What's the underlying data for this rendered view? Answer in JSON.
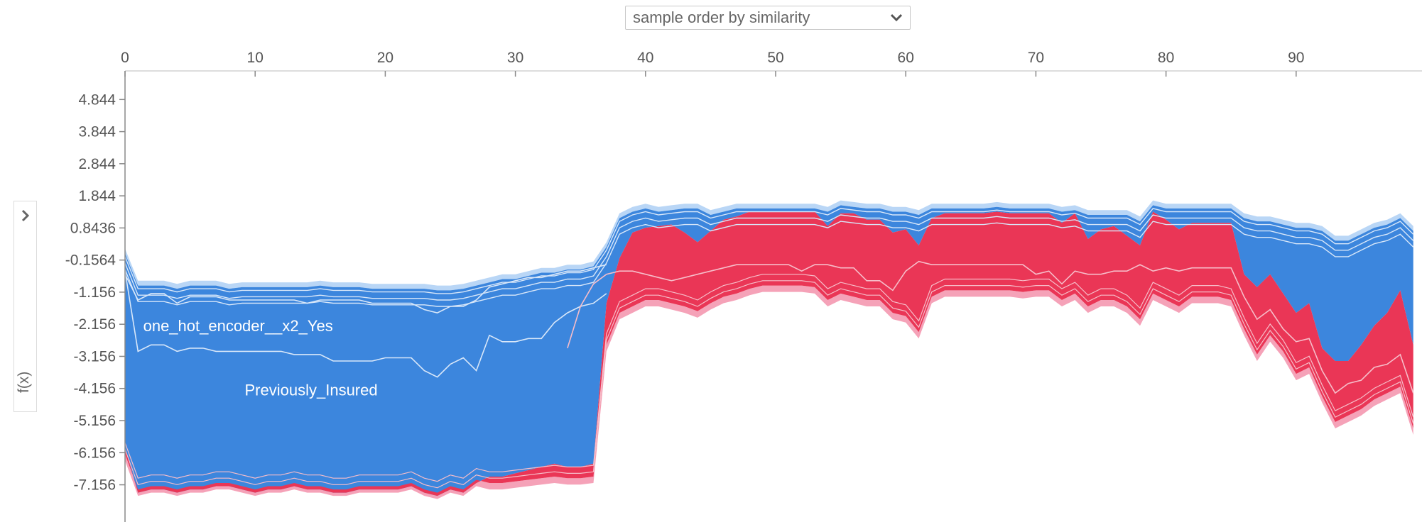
{
  "controls": {
    "order_select": "sample order by similarity",
    "side_axis_label": "f(x)"
  },
  "icons": {
    "dropdown": "chevron-down-icon",
    "expand": "chevron-right-icon"
  },
  "colors": {
    "negative": "#3c86dd",
    "positive": "#ea3656",
    "negative_light": "#b9d6f6",
    "positive_light": "#f5a2b8",
    "boundary": "#d8e7f9"
  },
  "chart_data": {
    "type": "area",
    "subtype": "stacked force plot (positive/negative contributions)",
    "x_ticks": [
      0,
      10,
      20,
      30,
      40,
      50,
      60,
      70,
      80,
      90
    ],
    "y_ticks": [
      "4.844",
      "3.844",
      "2.844",
      "1.844",
      "0.8436",
      "-0.1564",
      "-1.156",
      "-2.156",
      "-3.156",
      "-4.156",
      "-5.156",
      "-6.156",
      "-7.156"
    ],
    "xlim": [
      0,
      99
    ],
    "ylim": [
      -8.0,
      5.6
    ],
    "band_labels": [
      "one_hot_encoder__x2_Yes",
      "Previously_Insured"
    ],
    "x": [
      0,
      1,
      2,
      3,
      4,
      5,
      6,
      7,
      8,
      9,
      10,
      11,
      12,
      13,
      14,
      15,
      16,
      17,
      18,
      19,
      20,
      21,
      22,
      23,
      24,
      25,
      26,
      27,
      28,
      29,
      30,
      31,
      32,
      33,
      34,
      35,
      36,
      37,
      38,
      39,
      40,
      41,
      42,
      43,
      44,
      45,
      46,
      47,
      48,
      49,
      50,
      51,
      52,
      53,
      54,
      55,
      56,
      57,
      58,
      59,
      60,
      61,
      62,
      63,
      64,
      65,
      66,
      67,
      68,
      69,
      70,
      71,
      72,
      73,
      74,
      75,
      76,
      77,
      78,
      79,
      80,
      81,
      82,
      83,
      84,
      85,
      86,
      87,
      88,
      89,
      90,
      91,
      92,
      93,
      94,
      95,
      96,
      97,
      98,
      99
    ],
    "top": [
      0.2,
      -0.8,
      -0.8,
      -0.8,
      -0.9,
      -0.8,
      -0.8,
      -0.8,
      -0.9,
      -0.85,
      -0.85,
      -0.85,
      -0.85,
      -0.85,
      -0.85,
      -0.8,
      -0.85,
      -0.85,
      -0.85,
      -0.9,
      -0.9,
      -0.9,
      -0.9,
      -0.9,
      -0.95,
      -0.95,
      -0.9,
      -0.8,
      -0.7,
      -0.6,
      -0.6,
      -0.5,
      -0.4,
      -0.4,
      -0.3,
      -0.3,
      -0.2,
      0.4,
      1.3,
      1.5,
      1.6,
      1.5,
      1.55,
      1.6,
      1.6,
      1.4,
      1.5,
      1.6,
      1.6,
      1.6,
      1.6,
      1.6,
      1.6,
      1.6,
      1.5,
      1.7,
      1.65,
      1.6,
      1.6,
      1.5,
      1.5,
      1.4,
      1.6,
      1.6,
      1.6,
      1.6,
      1.6,
      1.65,
      1.6,
      1.6,
      1.6,
      1.6,
      1.5,
      1.55,
      1.4,
      1.4,
      1.4,
      1.4,
      1.2,
      1.7,
      1.6,
      1.6,
      1.6,
      1.6,
      1.6,
      1.6,
      1.3,
      1.2,
      1.2,
      1.1,
      1.0,
      1.0,
      0.9,
      0.6,
      0.6,
      0.8,
      1.0,
      1.1,
      1.3,
      0.9
    ],
    "neg_base": [
      -6.0,
      -7.4,
      -7.3,
      -7.3,
      -7.4,
      -7.3,
      -7.3,
      -7.2,
      -7.2,
      -7.3,
      -7.4,
      -7.3,
      -7.3,
      -7.2,
      -7.3,
      -7.3,
      -7.4,
      -7.4,
      -7.3,
      -7.3,
      -7.3,
      -7.3,
      -7.2,
      -7.4,
      -7.5,
      -7.3,
      -7.4,
      -7.1,
      -6.9,
      -6.9,
      -6.8,
      -6.7,
      -6.6,
      -6.5,
      -6.6,
      -6.6,
      -6.5,
      -1.5,
      -0.1,
      0.7,
      0.85,
      0.9,
      0.95,
      0.7,
      0.4,
      0.75,
      1.1,
      1.2,
      1.35,
      1.35,
      1.35,
      1.35,
      1.35,
      1.35,
      0.9,
      1.3,
      1.3,
      1.1,
      1.1,
      0.7,
      0.8,
      0.3,
      1.15,
      1.3,
      1.3,
      1.3,
      1.3,
      1.35,
      1.3,
      1.3,
      1.3,
      1.3,
      1.0,
      1.3,
      0.5,
      0.8,
      0.9,
      0.6,
      0.3,
      1.35,
      1.1,
      0.8,
      1.0,
      1.0,
      1.0,
      1.0,
      -0.6,
      -1.0,
      -0.6,
      -1.2,
      -1.8,
      -1.5,
      -2.9,
      -3.3,
      -3.3,
      -2.8,
      -2.2,
      -1.8,
      -1.1,
      -2.8
    ],
    "bottom": [
      -6.4,
      -7.5,
      -7.4,
      -7.4,
      -7.5,
      -7.4,
      -7.4,
      -7.3,
      -7.3,
      -7.4,
      -7.5,
      -7.4,
      -7.4,
      -7.3,
      -7.4,
      -7.4,
      -7.5,
      -7.5,
      -7.4,
      -7.4,
      -7.4,
      -7.4,
      -7.3,
      -7.5,
      -7.6,
      -7.4,
      -7.5,
      -7.2,
      -7.3,
      -7.3,
      -7.25,
      -7.2,
      -7.15,
      -7.1,
      -7.15,
      -7.15,
      -7.1,
      -3.0,
      -2.0,
      -1.8,
      -1.6,
      -1.6,
      -1.7,
      -1.8,
      -1.95,
      -1.7,
      -1.5,
      -1.4,
      -1.25,
      -1.15,
      -1.15,
      -1.15,
      -1.15,
      -1.2,
      -1.6,
      -1.4,
      -1.5,
      -1.6,
      -1.6,
      -2.0,
      -2.1,
      -2.6,
      -1.5,
      -1.3,
      -1.3,
      -1.3,
      -1.3,
      -1.3,
      -1.3,
      -1.35,
      -1.3,
      -1.3,
      -1.6,
      -1.4,
      -1.8,
      -1.6,
      -1.6,
      -1.8,
      -2.2,
      -1.4,
      -1.6,
      -1.8,
      -1.5,
      -1.5,
      -1.5,
      -1.6,
      -2.5,
      -3.3,
      -2.7,
      -3.2,
      -3.9,
      -3.7,
      -4.6,
      -5.4,
      -5.2,
      -5.0,
      -4.7,
      -4.5,
      -4.3,
      -5.6
    ],
    "neg_lines": [
      [
        -0.5,
        -3.0,
        -2.8,
        -2.8,
        -3.0,
        -2.9,
        -2.9,
        -3.0,
        -3.0,
        -3.0,
        -3.0,
        -3.0,
        -3.0,
        -3.1,
        -3.1,
        -3.1,
        -3.3,
        -3.3,
        -3.3,
        -3.3,
        -3.2,
        -3.2,
        -3.2,
        -3.6,
        -3.8,
        -3.4,
        -3.2,
        -3.6,
        -2.5,
        -2.7,
        -2.7,
        -2.6,
        -2.6,
        -2.1,
        -1.8,
        -1.6,
        -1.5,
        -1.2
      ],
      [
        -0.6,
        -1.4,
        -1.2,
        -1.2,
        -1.5,
        -1.3,
        -1.3,
        -1.3,
        -1.4,
        -1.4,
        -1.4,
        -1.4,
        -1.4,
        -1.4,
        -1.5,
        -1.4,
        -1.4,
        -1.4,
        -1.4,
        -1.5,
        -1.5,
        -1.5,
        -1.5,
        -1.7,
        -1.8,
        -1.6,
        -1.6,
        -1.4,
        -1.0,
        -0.9,
        -0.8,
        -0.7,
        -0.7,
        -0.6,
        -0.5,
        -0.5,
        -0.4,
        -0.3
      ]
    ],
    "pos_lines": [
      [
        -2.9,
        -1.6,
        -0.9,
        -0.6,
        -0.5,
        -0.5,
        -0.6,
        -0.7,
        -0.8,
        -0.7,
        -0.6,
        -0.5,
        -0.4,
        -0.3,
        -0.3,
        -0.3,
        -0.3,
        -0.3,
        -0.5,
        -0.3,
        -0.3,
        -0.4,
        -0.4,
        -0.8,
        -0.8,
        -1.1,
        -0.5,
        -0.2,
        -0.3,
        -0.3,
        -0.3,
        -0.3,
        -0.3,
        -0.3,
        -0.3,
        -0.3,
        -0.6,
        -0.5,
        -0.9,
        -0.5,
        -0.6,
        -0.6,
        -0.5,
        -0.5,
        -0.3,
        -0.5,
        -0.4,
        -0.5,
        -0.4,
        -0.4,
        -0.4,
        -0.4,
        -1.3,
        -2.0,
        -1.7,
        -2.3,
        -2.7,
        -2.6,
        -3.6,
        -4.3,
        -4.0,
        -3.9,
        -3.5,
        -3.4,
        -3.1,
        -4.3
      ]
    ]
  }
}
